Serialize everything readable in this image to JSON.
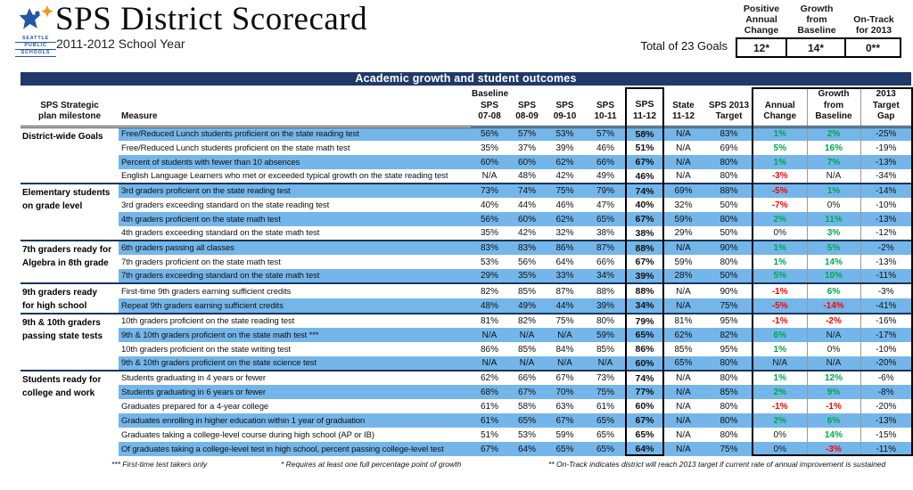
{
  "colors": {
    "navy_header": "#1f3a68",
    "row_highlight": "#74b6ea",
    "positive": "#00a651",
    "negative": "#ff0000",
    "separator": "#17365d"
  },
  "header": {
    "logo_lines": [
      "SEATTLE",
      "PUBLIC",
      "SCHOOLS"
    ],
    "title": "SPS District Scorecard",
    "subtitle": "2011-2012 School Year",
    "goals_label": "Total of 23 Goals",
    "summary": [
      {
        "heading": "Positive\nAnnual\nChange",
        "value": "12*"
      },
      {
        "heading": "Growth\nfrom\nBaseline",
        "value": "14*"
      },
      {
        "heading": "On-Track\nfor 2013",
        "value": "0**"
      }
    ]
  },
  "banner": {
    "title": "Academic growth and student outcomes"
  },
  "table": {
    "milestone_header": "SPS Strategic\nplan milestone",
    "measure_header": "Measure",
    "columns": [
      "Baseline\nSPS\n07-08",
      "SPS\n08-09",
      "SPS\n09-10",
      "SPS\n10-11",
      "SPS\n11-12",
      "State\n11-12",
      "SPS 2013\nTarget",
      "Annual\nChange",
      "Growth\nfrom\nBaseline",
      "2013\nTarget\nGap"
    ],
    "sections": [
      {
        "milestone": "District-wide Goals",
        "rows": [
          {
            "measure": "Free/Reduced Lunch students proficient on the state reading test",
            "values": [
              "56%",
              "57%",
              "53%",
              "57%",
              "58%",
              "N/A",
              "83%",
              "1%",
              "2%",
              "-25%"
            ]
          },
          {
            "measure": "Free/Reduced Lunch students proficient on the state math test",
            "values": [
              "35%",
              "37%",
              "39%",
              "46%",
              "51%",
              "N/A",
              "69%",
              "5%",
              "16%",
              "-19%"
            ]
          },
          {
            "measure": "Percent of students with fewer than 10 absences",
            "values": [
              "60%",
              "60%",
              "62%",
              "66%",
              "67%",
              "N/A",
              "80%",
              "1%",
              "7%",
              "-13%"
            ]
          },
          {
            "measure": "English Language Learners who met or exceeded typical growth on the state reading test",
            "values": [
              "N/A",
              "48%",
              "42%",
              "49%",
              "46%",
              "N/A",
              "80%",
              "-3%",
              "N/A",
              "-34%"
            ]
          }
        ]
      },
      {
        "milestone": "Elementary students\non grade level",
        "rows": [
          {
            "measure": "3rd graders proficient on the state reading test",
            "values": [
              "73%",
              "74%",
              "75%",
              "79%",
              "74%",
              "69%",
              "88%",
              "-5%",
              "1%",
              "-14%"
            ]
          },
          {
            "measure": "3rd graders exceeding standard on the state reading test",
            "values": [
              "40%",
              "44%",
              "46%",
              "47%",
              "40%",
              "32%",
              "50%",
              "-7%",
              "0%",
              "-10%"
            ]
          },
          {
            "measure": "4th graders proficient on the state math test",
            "values": [
              "56%",
              "60%",
              "62%",
              "65%",
              "67%",
              "59%",
              "80%",
              "2%",
              "11%",
              "-13%"
            ]
          },
          {
            "measure": "4th graders exceeding standard on the state math test",
            "values": [
              "35%",
              "42%",
              "32%",
              "38%",
              "38%",
              "29%",
              "50%",
              "0%",
              "3%",
              "-12%"
            ]
          }
        ]
      },
      {
        "milestone": "7th graders ready for\nAlgebra in 8th grade",
        "rows": [
          {
            "measure": "6th graders passing all classes",
            "values": [
              "83%",
              "83%",
              "86%",
              "87%",
              "88%",
              "N/A",
              "90%",
              "1%",
              "5%",
              "-2%"
            ]
          },
          {
            "measure": "7th graders proficient on the state math test",
            "values": [
              "53%",
              "56%",
              "64%",
              "66%",
              "67%",
              "59%",
              "80%",
              "1%",
              "14%",
              "-13%"
            ]
          },
          {
            "measure": "7th graders exceeding standard on the state math test",
            "values": [
              "29%",
              "35%",
              "33%",
              "34%",
              "39%",
              "28%",
              "50%",
              "5%",
              "10%",
              "-11%"
            ]
          }
        ]
      },
      {
        "milestone": "9th graders ready\nfor high school",
        "rows": [
          {
            "measure": "First-time 9th graders earning sufficient credits",
            "values": [
              "82%",
              "85%",
              "87%",
              "88%",
              "88%",
              "N/A",
              "90%",
              "-1%",
              "6%",
              "-3%"
            ]
          },
          {
            "measure": "Repeat 9th graders earning sufficient credits",
            "values": [
              "48%",
              "49%",
              "44%",
              "39%",
              "34%",
              "N/A",
              "75%",
              "-5%",
              "-14%",
              "-41%"
            ]
          }
        ]
      },
      {
        "milestone": "9th & 10th graders\npassing state tests",
        "rows": [
          {
            "measure": "10th graders proficient on the state reading test",
            "values": [
              "81%",
              "82%",
              "75%",
              "80%",
              "79%",
              "81%",
              "95%",
              "-1%",
              "-2%",
              "-16%"
            ]
          },
          {
            "measure": "9th & 10th graders proficient on the state math test ***",
            "values": [
              "N/A",
              "N/A",
              "N/A",
              "59%",
              "65%",
              "62%",
              "82%",
              "6%",
              "N/A",
              "-17%"
            ]
          },
          {
            "measure": "10th graders proficient on the state writing test",
            "values": [
              "86%",
              "85%",
              "84%",
              "85%",
              "86%",
              "85%",
              "95%",
              "1%",
              "0%",
              "-10%"
            ]
          },
          {
            "measure": "9th & 10th graders proficient on the state science test",
            "values": [
              "N/A",
              "N/A",
              "N/A",
              "N/A",
              "60%",
              "65%",
              "80%",
              "N/A",
              "N/A",
              "-20%"
            ]
          }
        ]
      },
      {
        "milestone": "Students ready for\ncollege and work",
        "rows": [
          {
            "measure": "Students graduating in 4 years or fewer",
            "values": [
              "62%",
              "66%",
              "67%",
              "73%",
              "74%",
              "N/A",
              "80%",
              "1%",
              "12%",
              "-6%"
            ]
          },
          {
            "measure": "Students graduating in 6 years or fewer",
            "values": [
              "68%",
              "67%",
              "70%",
              "75%",
              "77%",
              "N/A",
              "85%",
              "2%",
              "9%",
              "-8%"
            ]
          },
          {
            "measure": "Graduates prepared for a 4-year college",
            "values": [
              "61%",
              "58%",
              "63%",
              "61%",
              "60%",
              "N/A",
              "80%",
              "-1%",
              "-1%",
              "-20%"
            ]
          },
          {
            "measure": "Graduates enrolling in higher education within 1 year of graduation",
            "values": [
              "61%",
              "65%",
              "67%",
              "65%",
              "67%",
              "N/A",
              "80%",
              "2%",
              "6%",
              "-13%"
            ]
          },
          {
            "measure": "Graduates taking a college-level course during high school (AP or IB)",
            "values": [
              "51%",
              "53%",
              "59%",
              "65%",
              "65%",
              "N/A",
              "80%",
              "0%",
              "14%",
              "-15%"
            ]
          },
          {
            "measure": "Of graduates taking a college-level test in high school, percent passing college-level test",
            "values": [
              "67%",
              "64%",
              "65%",
              "65%",
              "64%",
              "N/A",
              "75%",
              "0%",
              "-3%",
              "-11%"
            ]
          }
        ]
      }
    ]
  },
  "footnotes": [
    "*** First-time test takers only",
    "* Requires at least one full percentage point of growth",
    "** On-Track indicates district will reach 2013 target if current rate of annual improvement is sustained"
  ]
}
